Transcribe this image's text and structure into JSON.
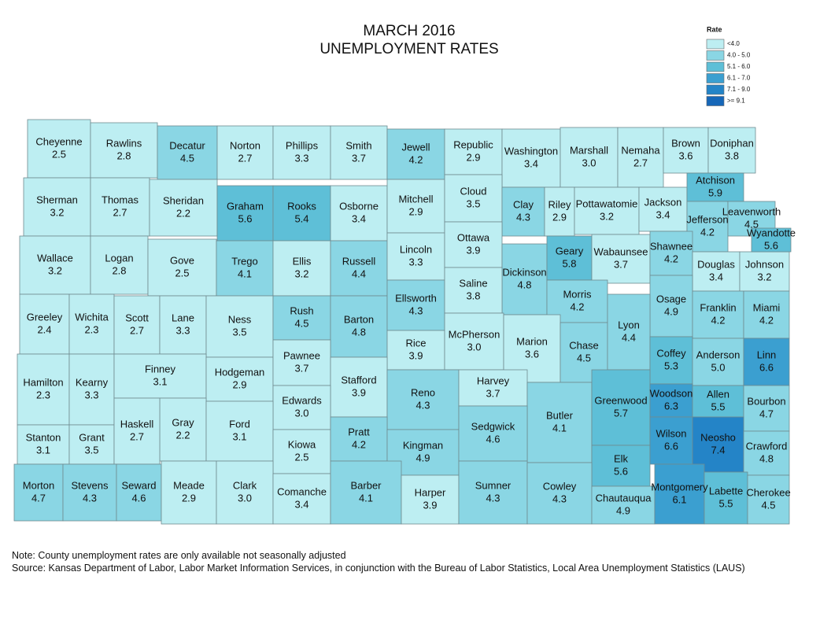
{
  "title": [
    "MARCH 2016",
    "UNEMPLOYMENT RATES"
  ],
  "legend": {
    "title": "Rate",
    "classes": [
      {
        "label": "<4.0",
        "color": "#bdeef2"
      },
      {
        "label": "4.0 - 5.0",
        "color": "#8ad6e4"
      },
      {
        "label": "5.1 - 6.0",
        "color": "#5ebfd7"
      },
      {
        "label": "6.1 - 7.0",
        "color": "#3b9fd0"
      },
      {
        "label": "7.1 - 9.0",
        "color": "#2484c7"
      },
      {
        "label": ">= 9.1",
        "color": "#1667b8"
      }
    ]
  },
  "counties": [
    {
      "name": "Cheyenne",
      "rate": 2.5
    },
    {
      "name": "Rawlins",
      "rate": 2.8
    },
    {
      "name": "Decatur",
      "rate": 4.5
    },
    {
      "name": "Norton",
      "rate": 2.7
    },
    {
      "name": "Phillips",
      "rate": 3.3
    },
    {
      "name": "Smith",
      "rate": 3.7
    },
    {
      "name": "Jewell",
      "rate": 4.2
    },
    {
      "name": "Republic",
      "rate": 2.9
    },
    {
      "name": "Washington",
      "rate": 3.4
    },
    {
      "name": "Marshall",
      "rate": 3.0,
      "rate_label": "3.0"
    },
    {
      "name": "Nemaha",
      "rate": 2.7
    },
    {
      "name": "Brown",
      "rate": 3.6
    },
    {
      "name": "Doniphan",
      "rate": 3.8
    },
    {
      "name": "Sherman",
      "rate": 3.2
    },
    {
      "name": "Thomas",
      "rate": 2.7
    },
    {
      "name": "Sheridan",
      "rate": 2.2
    },
    {
      "name": "Graham",
      "rate": 5.6
    },
    {
      "name": "Rooks",
      "rate": 5.4
    },
    {
      "name": "Osborne",
      "rate": 3.4
    },
    {
      "name": "Mitchell",
      "rate": 2.9
    },
    {
      "name": "Cloud",
      "rate": 3.5
    },
    {
      "name": "Clay",
      "rate": 4.3
    },
    {
      "name": "Riley",
      "rate": 2.9
    },
    {
      "name": "Pottawatomie",
      "rate": 3.2
    },
    {
      "name": "Jackson",
      "rate": 3.4
    },
    {
      "name": "Atchison",
      "rate": 5.9
    },
    {
      "name": "Jefferson",
      "rate": 4.2
    },
    {
      "name": "Leavenworth",
      "rate": 4.5
    },
    {
      "name": "Wallace",
      "rate": 3.2
    },
    {
      "name": "Logan",
      "rate": 2.8
    },
    {
      "name": "Gove",
      "rate": 2.5
    },
    {
      "name": "Trego",
      "rate": 4.1
    },
    {
      "name": "Ellis",
      "rate": 3.2
    },
    {
      "name": "Russell",
      "rate": 4.4
    },
    {
      "name": "Lincoln",
      "rate": 3.3
    },
    {
      "name": "Ottawa",
      "rate": 3.9
    },
    {
      "name": "Dickinson",
      "rate": 4.8
    },
    {
      "name": "Geary",
      "rate": 5.8
    },
    {
      "name": "Wabaunsee",
      "rate": 3.7
    },
    {
      "name": "Shawnee",
      "rate": 4.2
    },
    {
      "name": "Douglas",
      "rate": 3.4
    },
    {
      "name": "Johnson",
      "rate": 3.2
    },
    {
      "name": "Wyandotte",
      "rate": 5.6
    },
    {
      "name": "Greeley",
      "rate": 2.4
    },
    {
      "name": "Wichita",
      "rate": 2.3
    },
    {
      "name": "Scott",
      "rate": 2.7
    },
    {
      "name": "Lane",
      "rate": 3.3
    },
    {
      "name": "Ness",
      "rate": 3.5
    },
    {
      "name": "Rush",
      "rate": 4.5
    },
    {
      "name": "Barton",
      "rate": 4.8
    },
    {
      "name": "Ellsworth",
      "rate": 4.3
    },
    {
      "name": "Saline",
      "rate": 3.8
    },
    {
      "name": "Morris",
      "rate": 4.2
    },
    {
      "name": "Osage",
      "rate": 4.9
    },
    {
      "name": "Franklin",
      "rate": 4.2
    },
    {
      "name": "Miami",
      "rate": 4.2
    },
    {
      "name": "Hamilton",
      "rate": 2.3
    },
    {
      "name": "Kearny",
      "rate": 3.3
    },
    {
      "name": "Finney",
      "rate": 3.1
    },
    {
      "name": "Hodgeman",
      "rate": 2.9
    },
    {
      "name": "Pawnee",
      "rate": 3.7
    },
    {
      "name": "Rice",
      "rate": 3.9
    },
    {
      "name": "McPherson",
      "rate": 3.0,
      "rate_label": "3.0"
    },
    {
      "name": "Marion",
      "rate": 3.6
    },
    {
      "name": "Chase",
      "rate": 4.5
    },
    {
      "name": "Lyon",
      "rate": 4.4
    },
    {
      "name": "Coffey",
      "rate": 5.3
    },
    {
      "name": "Anderson",
      "rate": 5.0,
      "rate_label": "5.0"
    },
    {
      "name": "Linn",
      "rate": 6.6
    },
    {
      "name": "Stafford",
      "rate": 3.9
    },
    {
      "name": "Edwards",
      "rate": 3.0,
      "rate_label": "3.0"
    },
    {
      "name": "Reno",
      "rate": 4.3
    },
    {
      "name": "Harvey",
      "rate": 3.7
    },
    {
      "name": "Butler",
      "rate": 4.1
    },
    {
      "name": "Greenwood",
      "rate": 5.7
    },
    {
      "name": "Woodson",
      "rate": 6.3
    },
    {
      "name": "Allen",
      "rate": 5.5
    },
    {
      "name": "Bourbon",
      "rate": 4.7
    },
    {
      "name": "Gray",
      "rate": 2.2
    },
    {
      "name": "Ford",
      "rate": 3.1
    },
    {
      "name": "Stanton",
      "rate": 3.1
    },
    {
      "name": "Grant",
      "rate": 3.5
    },
    {
      "name": "Haskell",
      "rate": 2.7
    },
    {
      "name": "Kiowa",
      "rate": 2.5
    },
    {
      "name": "Pratt",
      "rate": 4.2
    },
    {
      "name": "Kingman",
      "rate": 4.9
    },
    {
      "name": "Sedgwick",
      "rate": 4.6
    },
    {
      "name": "Elk",
      "rate": 5.6
    },
    {
      "name": "Wilson",
      "rate": 6.6
    },
    {
      "name": "Neosho",
      "rate": 7.4
    },
    {
      "name": "Crawford",
      "rate": 4.8
    },
    {
      "name": "Morton",
      "rate": 4.7
    },
    {
      "name": "Stevens",
      "rate": 4.3
    },
    {
      "name": "Seward",
      "rate": 4.6
    },
    {
      "name": "Meade",
      "rate": 2.9
    },
    {
      "name": "Clark",
      "rate": 3.0,
      "rate_label": "3.0"
    },
    {
      "name": "Comanche",
      "rate": 3.4
    },
    {
      "name": "Barber",
      "rate": 4.1
    },
    {
      "name": "Harper",
      "rate": 3.9
    },
    {
      "name": "Sumner",
      "rate": 4.3
    },
    {
      "name": "Cowley",
      "rate": 4.3
    },
    {
      "name": "Chautauqua",
      "rate": 4.9
    },
    {
      "name": "Montgomery",
      "rate": 6.1
    },
    {
      "name": "Labette",
      "rate": 5.5
    },
    {
      "name": "Cherokee",
      "rate": 4.5
    }
  ],
  "notes": [
    "Note: County unemployment rates are only available not seasonally adjusted",
    "Source: Kansas Department of Labor, Labor Market Information Services, in conjunction with the Bureau of Labor Statistics, Local Area Unemployment Statistics (LAUS)"
  ]
}
